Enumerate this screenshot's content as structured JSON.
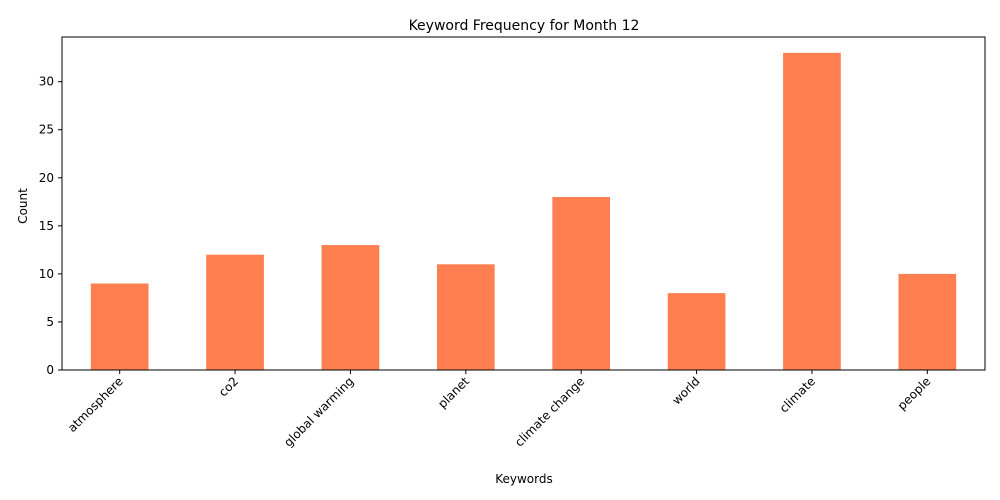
{
  "chart_data": {
    "type": "bar",
    "title": "Keyword Frequency for Month 12",
    "xlabel": "Keywords",
    "ylabel": "Count",
    "categories": [
      "atmosphere",
      "co2",
      "global warming",
      "planet",
      "climate change",
      "world",
      "climate",
      "people"
    ],
    "values": [
      9,
      12,
      13,
      11,
      18,
      8,
      33,
      10
    ],
    "ylim": [
      0,
      34.65
    ],
    "yticks": [
      0,
      5,
      10,
      15,
      20,
      25,
      30
    ],
    "bar_color": "#ff7f50",
    "grid": false,
    "legend": "none"
  }
}
